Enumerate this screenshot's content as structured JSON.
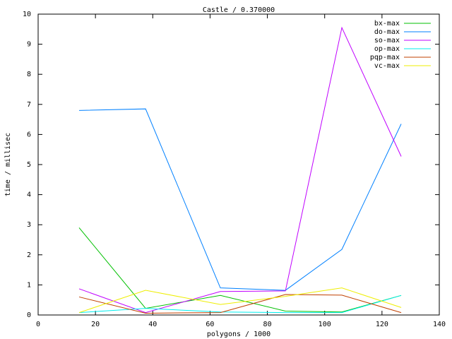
{
  "chart_data": {
    "type": "line",
    "title": "Castle / 0.370000",
    "x_label": "polygons / 1000",
    "y_label": "time / millisec",
    "x": [
      14.3,
      37.5,
      63.6,
      86.3,
      106,
      126.7
    ],
    "series": [
      {
        "name": "bx-max",
        "color": "#00c000",
        "values": [
          2.9,
          0.22,
          0.65,
          0.13,
          0.1,
          0.65
        ]
      },
      {
        "name": "do-max",
        "color": "#0080ff",
        "values": [
          6.8,
          6.85,
          0.9,
          0.82,
          2.18,
          6.35
        ]
      },
      {
        "name": "so-max",
        "color": "#c000ff",
        "values": [
          0.87,
          0.08,
          0.78,
          0.8,
          9.55,
          5.27
        ]
      },
      {
        "name": "op-max",
        "color": "#00eeee",
        "values": [
          0.08,
          0.22,
          0.1,
          0.08,
          0.08,
          0.65
        ]
      },
      {
        "name": "pqp-max",
        "color": "#c04000",
        "values": [
          0.6,
          0.06,
          0.08,
          0.68,
          0.66,
          0.08
        ]
      },
      {
        "name": "vc-max",
        "color": "#eeee00",
        "values": [
          0.08,
          0.82,
          0.35,
          0.62,
          0.9,
          0.25
        ]
      }
    ],
    "xlim": [
      0,
      140
    ],
    "xticks": [
      0,
      20,
      40,
      60,
      80,
      100,
      120,
      140
    ],
    "ylim": [
      0,
      10
    ],
    "yticks": [
      0,
      1,
      2,
      3,
      4,
      5,
      6,
      7,
      8,
      9,
      10
    ],
    "grid": false,
    "legend": "top-right"
  }
}
